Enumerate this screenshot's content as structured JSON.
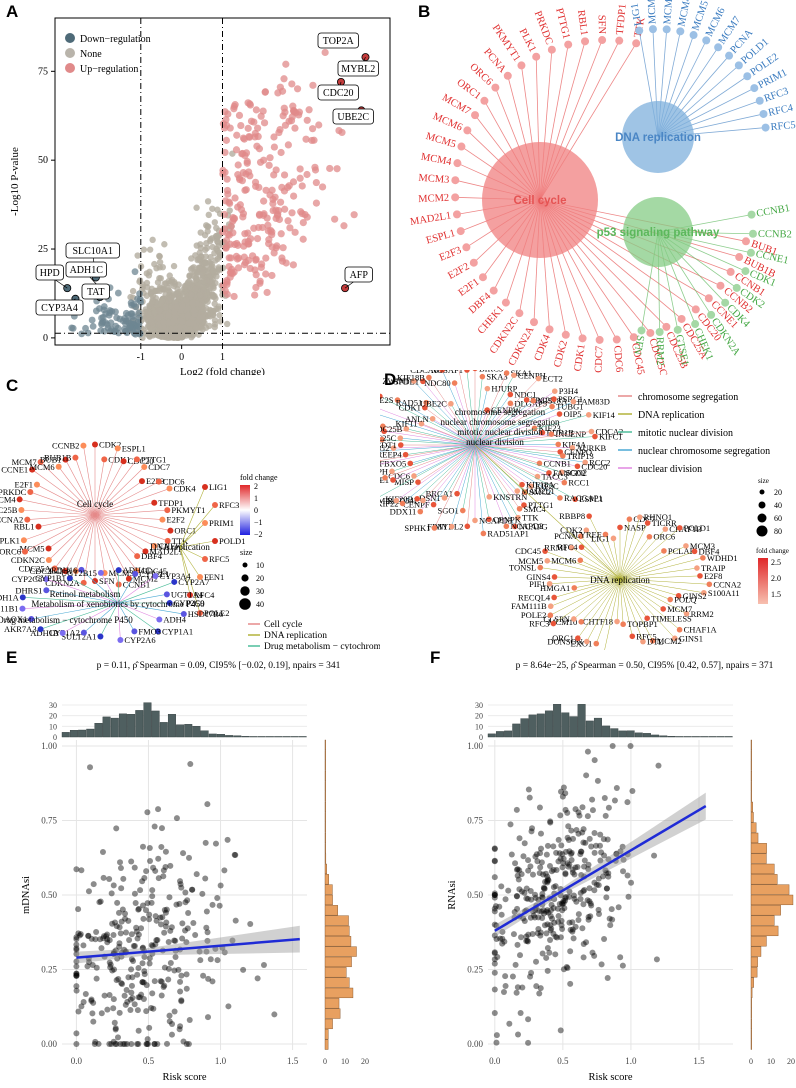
{
  "panel_labels": [
    "A",
    "B",
    "C",
    "D",
    "E",
    "F"
  ],
  "chart_data": [
    {
      "panel": "A",
      "type": "scatter",
      "title": "",
      "xlabel": "Log2 (fold change)",
      "ylabel": "-Log10 P-value",
      "xlim": [
        -3.1,
        5.1
      ],
      "ylim": [
        -2,
        90
      ],
      "x_ticks": [
        -1,
        0,
        1
      ],
      "y_ticks": [
        0,
        25,
        50,
        75
      ],
      "thresholds": {
        "fc": 1,
        "p": 1.3
      },
      "legend": [
        {
          "label": "Down−regulation",
          "color": "#4e6a78"
        },
        {
          "label": "None",
          "color": "#b9b4ab"
        },
        {
          "label": "Up−regulation",
          "color": "#e08a8a"
        }
      ],
      "highlighted": [
        {
          "label": "TOP2A",
          "x": 3.7,
          "y": 84,
          "color": "#c23b3b"
        },
        {
          "label": "MYBL2",
          "x": 4.5,
          "y": 79,
          "color": "#c23b3b"
        },
        {
          "label": "CDC20",
          "x": 3.9,
          "y": 72,
          "color": "#c23b3b"
        },
        {
          "label": "UBE2C",
          "x": 4.4,
          "y": 64,
          "color": "#c23b3b"
        },
        {
          "label": "AFP",
          "x": 4.0,
          "y": 14,
          "color": "#c23b3b"
        },
        {
          "label": "SLC10A1",
          "x": -2.1,
          "y": 17,
          "color": "#4e6a78"
        },
        {
          "label": "ADH1C",
          "x": -2.0,
          "y": 14,
          "color": "#4e6a78"
        },
        {
          "label": "TAT",
          "x": -2.0,
          "y": 11.5,
          "color": "#4e6a78"
        },
        {
          "label": "HPD",
          "x": -2.8,
          "y": 14,
          "color": "#4e6a78"
        },
        {
          "label": "CYP3A4",
          "x": -2.6,
          "y": 11,
          "color": "#4e6a78"
        }
      ]
    },
    {
      "panel": "B",
      "type": "network",
      "pathways": [
        {
          "label": "Cell cycle",
          "color": "#e55353"
        },
        {
          "label": "DNA replication",
          "color": "#4a86c5"
        },
        {
          "label": "p53 signaling pathway",
          "color": "#5cb85c"
        }
      ],
      "red_genes": [
        "TTK",
        "TFDP1",
        "SFN",
        "RBL1",
        "PTTG1",
        "PRKDC",
        "PLK1",
        "PKMYT1",
        "PCNA",
        "ORC6",
        "ORC1",
        "MCM7",
        "MCM6",
        "MCM5",
        "MCM4",
        "MCM3",
        "MCM2",
        "MAD2L1",
        "ESPL1",
        "E2F3",
        "E2F2",
        "E2F1",
        "DBF4",
        "CHEK1",
        "CDKN2C",
        "CDKN2A",
        "CDK4",
        "CDK2",
        "CDK1",
        "CDC7",
        "CDC6",
        "CDC45",
        "CDC25C",
        "CDC25B",
        "CDC25A",
        "CDC20",
        "CCNE1",
        "CCNB2",
        "CCNB1",
        "BUB1B",
        "BUB1"
      ],
      "blue_genes": [
        "LIG1",
        "MCM2",
        "MCM3",
        "MCM4",
        "MCM5",
        "MCM6",
        "MCM7",
        "PCNA",
        "POLD1",
        "POLE2",
        "PRIM1",
        "RFC3",
        "RFC4",
        "RFC5"
      ],
      "green_genes": [
        "CCNB1",
        "CCNB2",
        "CCNE1",
        "CDK1",
        "CDK2",
        "CDK4",
        "CDKN2A",
        "CHEK1",
        "GTSE1",
        "RRM2",
        "SFN"
      ]
    },
    {
      "panel": "C",
      "type": "network",
      "legend_title_color": "fold change",
      "color_ticks": [
        "2",
        "1",
        "0",
        "−1",
        "−2"
      ],
      "legend_title_size": "size",
      "size_ticks": [
        "10",
        "20",
        "30",
        "40"
      ],
      "categories": [
        {
          "label": "Cell cycle",
          "color": "#e58a8a"
        },
        {
          "label": "DNA replication",
          "color": "#b2b23b"
        },
        {
          "label": "Drug metabolism − cytochrome P450",
          "color": "#4dbd9a"
        },
        {
          "label": "Metabolism of xenobiotics by cytochrome P450",
          "color": "#4aa9d4"
        },
        {
          "label": "Retinol metabolism",
          "color": "#e087e0"
        }
      ],
      "hub_labels": [
        "Cell cycle",
        "DNA replication",
        "Retinol metabolism",
        "Metabolism of xenobiotics by cytochrome P450",
        "Drug metabolism − cytochrome P450"
      ],
      "genes_red": [
        "CDK2",
        "CDK1",
        "ESPL1",
        "CDC20",
        "PTTG1",
        "CDC7",
        "E2F3",
        "CDC6",
        "CDK4",
        "TFDP1",
        "PKMYT1",
        "E2F2",
        "ORC1",
        "TTK",
        "CHEK1",
        "MAD2L1",
        "DBF4",
        "CDC45",
        "MCM2",
        "CCNB1",
        "MCM3",
        "SFN",
        "CDKN2A",
        "PCNA",
        "CDC25C",
        "CDC25A",
        "CDKN2C",
        "MCM5",
        "ORC6",
        "PLK1",
        "RBL1",
        "CCNA2",
        "CDC25B",
        "MCM4",
        "PRKDC",
        "E2F1",
        "CCNE1",
        "MCM7",
        "MCM6",
        "BUB1",
        "BUB1B",
        "CCNB2",
        "LIG1",
        "RFC3",
        "PRIM1",
        "POLD1",
        "RFC5",
        "FEN1",
        "RFC4",
        "POLE2"
      ],
      "genes_blue": [
        "CYP2C9",
        "HSD17B6",
        "ADH4",
        "CYP1A1",
        "FMO3",
        "CYP2A6",
        "SULT2A1",
        "CYP1A2",
        "ADH1B",
        "AKR7A3",
        "AOX1",
        "HSD11B1",
        "ADH1A",
        "DHRS1",
        "CYP2C8",
        "CYP1B1",
        "RDH16",
        "UGT2B15",
        "ADH1C",
        "CYP2E1",
        "CYP3A4",
        "CYP2A7",
        "UGT1A4"
      ]
    },
    {
      "panel": "D",
      "type": "network",
      "categories": [
        {
          "label": "chromosome segregation",
          "color": "#e58a8a"
        },
        {
          "label": "DNA replication",
          "color": "#b2b23b"
        },
        {
          "label": "mitotic nuclear division",
          "color": "#4dbd9a"
        },
        {
          "label": "nuclear chromosome segregation",
          "color": "#4aa9d4"
        },
        {
          "label": "nuclear division",
          "color": "#e087e0"
        }
      ],
      "legend_title_size": "size",
      "size_ticks": [
        "20",
        "40",
        "60",
        "80"
      ],
      "legend_title_color": "fold change",
      "color_ticks": [
        "2.5",
        "2.0",
        "1.5"
      ],
      "hub_labels": [
        "chromosome segregation",
        "nuclear chromosome segregation",
        "mitotic nuclear division",
        "nuclear division",
        "DNA replication"
      ],
      "genes_top": [
        "BIRC5",
        "SKA3",
        "HJURP",
        "CENPW",
        "SKA1",
        "CENPH",
        "NDC1",
        "DLGAP5",
        "ECT2",
        "SPC25",
        "MIS18A",
        "P3H4",
        "PSRC1",
        "TUBG1",
        "FAM83D",
        "OIP5",
        "KIF23",
        "KIF14",
        "BUB1B",
        "INCENP",
        "CDCA2",
        "KIFC1",
        "KIF4A",
        "AURKB",
        "CENPQ",
        "TRIP13",
        "RCC2",
        "CDC20",
        "CCNB1",
        "SGO2",
        "FANCD2",
        "RCC1",
        "TACC3",
        "ESPL1",
        "RACGAP1",
        "KIF2C",
        "KIF18A",
        "SMC2",
        "MAD2L1",
        "PTTG1",
        "SMC4",
        "TTK",
        "NCAPG",
        "NCAPD2",
        "KNSTRN",
        "CENPK",
        "RAD51AP1",
        "NCAPD3",
        "MYBL2",
        "SGO1",
        "FEN1",
        "BRCA1",
        "SPHK1",
        "DSN1",
        "CENPF",
        "DDX11",
        "RAD54L",
        "KIF20B",
        "KIF22",
        "RMI2",
        "MISP",
        "PLK1",
        "CDC6",
        "EME1",
        "AURKA",
        "NCAPH",
        "FBXO5",
        "CCNE1",
        "CKS2",
        "REEP4",
        "SPAG5",
        "NCAPG2",
        "CDT1",
        "CCNB2",
        "CDC25C",
        "MKI67",
        "DSCC1",
        "CDC25B",
        "PKMYT1",
        "TPX2",
        "KIF11",
        "CHEK1",
        "UBE2S",
        "ANLN",
        "CDK1",
        "RAD51",
        "ZWINT",
        "SPDL1",
        "KIF18B",
        "UBE2C",
        "CDCA8",
        "NDC80",
        "CDCA5",
        "NUSAP1"
      ],
      "genes_bottom": [
        "NASP",
        "CDC7",
        "RHNO1",
        "TICRR",
        "ORC6",
        "CHAF1B",
        "POLD1",
        "PCLAF",
        "MCM3",
        "DBF4",
        "WDHD1",
        "TRAIP",
        "E2F8",
        "CCNA2",
        "S100A11",
        "GINS2",
        "POLQ",
        "RRM2",
        "MCM7",
        "CHAF1A",
        "GINS1",
        "TIMELESS",
        "MCM2",
        "DTL",
        "RFC5",
        "TOPBP1",
        "CHTF18",
        "PRIM1",
        "EXO1",
        "DONSON",
        "ORC1",
        "MCM10",
        "CLSPN",
        "RFC3",
        "POLE2",
        "FAM111B",
        "RECQL4",
        "HMGA1",
        "PIF1",
        "GINS4",
        "TONSL",
        "MCM5",
        "CDC45",
        "MCM6",
        "RRM1",
        "RFC4",
        "PCNA",
        "CDK2",
        "RBBP8",
        "ALYREF",
        "LIG1"
      ]
    },
    {
      "panel": "E",
      "type": "scatter",
      "stats": "p = 0.11, ρ̂ Spearman = 0.09, CI95% [−0.02, 0.19], npairs = 341",
      "xlabel": "Risk score",
      "ylabel": "mDNAsi",
      "xlim": [
        -0.1,
        1.6
      ],
      "ylim": [
        -0.02,
        1.02
      ],
      "x_ticks": [
        "0.0",
        "0.5",
        "1.0",
        "1.5"
      ],
      "y_ticks": [
        "0.00",
        "0.25",
        "0.50",
        "0.75",
        "1.00"
      ],
      "hist_top_ticks": [
        "0",
        "10",
        "20",
        "30"
      ],
      "hist_right_ticks": [
        "0",
        "10",
        "20"
      ],
      "regression": {
        "intercept": 0.29,
        "slope": 0.04,
        "x0": 0.0,
        "x1": 1.55
      },
      "n": 341,
      "point_color": "#000000",
      "line_color": "#1f2bd6",
      "hist_top_color": "#4f5f60",
      "hist_right_color": "#e8a060"
    },
    {
      "panel": "F",
      "type": "scatter",
      "stats": "p = 8.64e−25, ρ̂ Spearman = 0.50, CI95% [0.42, 0.57], npairs = 371",
      "xlabel": "Risk score",
      "ylabel": "RNAsi",
      "xlim": [
        -0.05,
        1.75
      ],
      "ylim": [
        -0.02,
        1.02
      ],
      "x_ticks": [
        "0.0",
        "0.5",
        "1.0",
        "1.5"
      ],
      "y_ticks": [
        "0.00",
        "0.25",
        "0.50",
        "0.75",
        "1.00"
      ],
      "hist_top_ticks": [
        "0",
        "10",
        "20",
        "30"
      ],
      "hist_right_ticks": [
        "0",
        "10",
        "20"
      ],
      "regression": {
        "intercept": 0.38,
        "slope": 0.27,
        "x0": 0.0,
        "x1": 1.55
      },
      "n": 371,
      "point_color": "#000000",
      "line_color": "#1f2bd6",
      "hist_top_color": "#4f5f60",
      "hist_right_color": "#e8a060"
    }
  ]
}
